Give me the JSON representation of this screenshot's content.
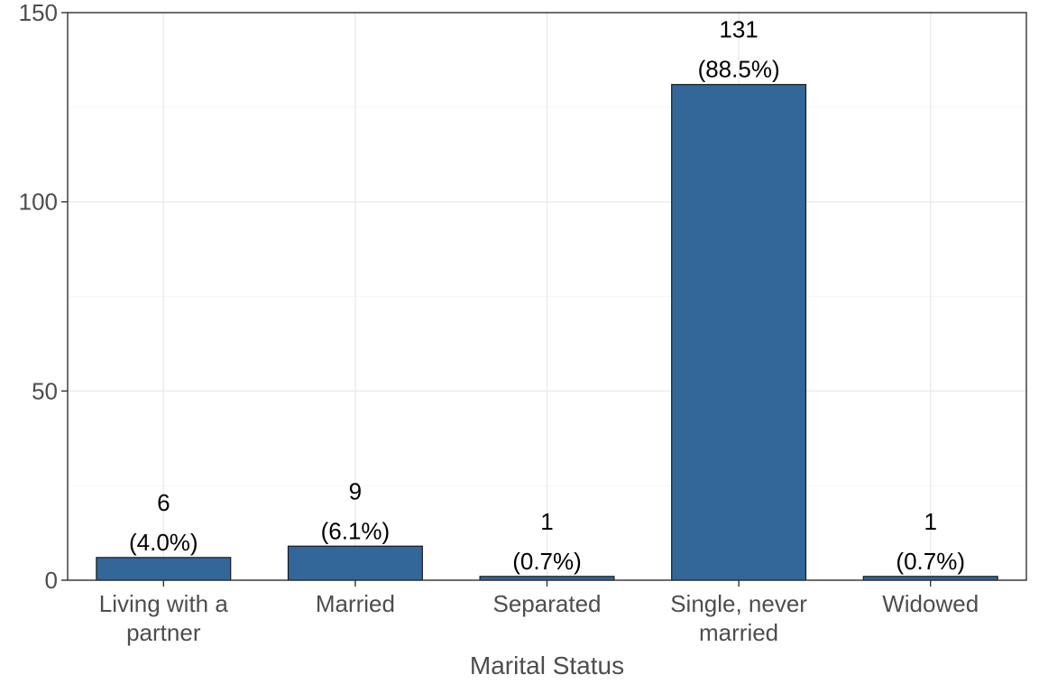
{
  "chart_data": {
    "type": "bar",
    "categories": [
      "Living with a partner",
      "Married",
      "Separated",
      "Single, never married",
      "Widowed"
    ],
    "category_lines": [
      [
        "Living with a",
        "partner"
      ],
      [
        "Married"
      ],
      [
        "Separated"
      ],
      [
        "Single, never",
        "married"
      ],
      [
        "Widowed"
      ]
    ],
    "values": [
      6,
      9,
      1,
      131,
      1
    ],
    "percent_labels": [
      "(4.0%)",
      "(6.1%)",
      "(0.7%)",
      "(88.5%)",
      "(0.7%)"
    ],
    "xlabel": "Marital Status",
    "ylabel": "",
    "ylim": [
      0,
      150
    ],
    "yticks": [
      0,
      50,
      100,
      150
    ],
    "grid": true,
    "bar_color": "#336699",
    "bar_outline": "#1a1a1a"
  }
}
